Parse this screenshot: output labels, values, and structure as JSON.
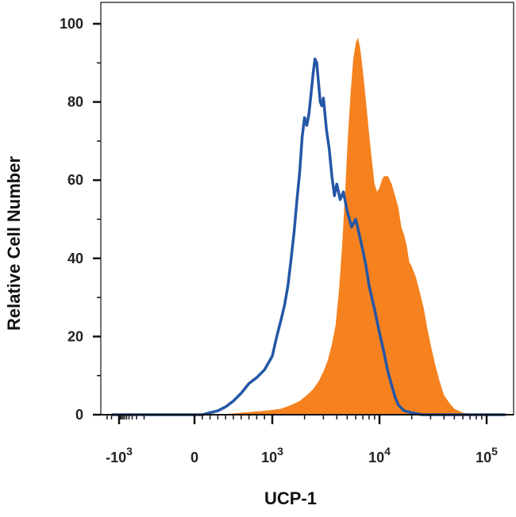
{
  "chart_data": {
    "type": "area",
    "xlabel": "UCP-1",
    "ylabel": "Relative Cell Number",
    "x_scale": "biexponential",
    "ylim": [
      0,
      100
    ],
    "xlim": [
      -3000,
      200000
    ],
    "y_ticks": [
      {
        "value": 0,
        "label": "0"
      },
      {
        "value": 20,
        "label": "20"
      },
      {
        "value": 40,
        "label": "40"
      },
      {
        "value": 60,
        "label": "60"
      },
      {
        "value": 80,
        "label": "80"
      },
      {
        "value": 100,
        "label": "100"
      }
    ],
    "x_ticks": [
      {
        "value": -1000,
        "base": "-10",
        "exp": "3"
      },
      {
        "value": 0,
        "base": "0",
        "exp": ""
      },
      {
        "value": 1000,
        "base": "10",
        "exp": "3"
      },
      {
        "value": 10000,
        "base": "10",
        "exp": "4"
      },
      {
        "value": 100000,
        "base": "10",
        "exp": "5"
      }
    ],
    "grid": false,
    "legend": "none",
    "series": [
      {
        "style": "filled",
        "color": "#f5821f",
        "x": [
          -2000,
          0,
          300,
          600,
          900,
          1200,
          1500,
          1800,
          2100,
          2400,
          2700,
          3000,
          3300,
          3600,
          3900,
          4200,
          4500,
          4800,
          5100,
          5400,
          5700,
          6000,
          6300,
          6600,
          7000,
          7500,
          8000,
          8500,
          9000,
          9500,
          10000,
          10500,
          11000,
          12000,
          13000,
          14000,
          15000,
          16000,
          17000,
          18000,
          19000,
          20000,
          22000,
          24000,
          26000,
          28000,
          30000,
          33000,
          36000,
          40000,
          45000,
          50000,
          60000,
          80000,
          100000,
          150000
        ],
        "y": [
          0,
          0,
          0,
          0.5,
          1,
          1.5,
          2.5,
          3.5,
          5,
          6.5,
          8.5,
          11,
          14,
          18,
          23,
          32,
          44,
          58,
          72,
          83,
          91,
          95,
          96.5,
          94,
          88,
          80,
          72,
          65,
          59,
          57,
          58,
          60,
          61,
          61,
          59,
          56,
          53,
          48,
          46,
          43,
          39,
          38,
          35,
          31,
          27,
          22,
          18,
          13,
          9,
          5,
          3,
          1.5,
          0.5,
          0,
          0,
          0
        ]
      },
      {
        "style": "line",
        "color": "#2456a6",
        "x": [
          -2000,
          0,
          100,
          200,
          300,
          400,
          500,
          600,
          700,
          800,
          900,
          1000,
          1100,
          1200,
          1300,
          1400,
          1500,
          1600,
          1700,
          1800,
          1900,
          2000,
          2100,
          2200,
          2300,
          2400,
          2500,
          2600,
          2700,
          2800,
          2900,
          3000,
          3100,
          3200,
          3400,
          3600,
          3800,
          4000,
          4300,
          4600,
          5000,
          5500,
          6000,
          6500,
          7000,
          7500,
          8000,
          9000,
          10000,
          11000,
          12000,
          13000,
          14000,
          15000,
          17000,
          20000,
          25000,
          30000,
          100000,
          150000
        ],
        "y": [
          0,
          0,
          0,
          0.5,
          1,
          2,
          3.5,
          5.5,
          8,
          9.5,
          11.5,
          15,
          20,
          24,
          28,
          33,
          40,
          47,
          55,
          62,
          71,
          76,
          74,
          77,
          82,
          87,
          91,
          90,
          85,
          80,
          79,
          81,
          77,
          73,
          68,
          61,
          56,
          59,
          55,
          57,
          52,
          48,
          50,
          46,
          42,
          38,
          33,
          27,
          21,
          16,
          11,
          7.5,
          4.5,
          2.5,
          1,
          0.5,
          0,
          0,
          0,
          0
        ]
      }
    ]
  }
}
